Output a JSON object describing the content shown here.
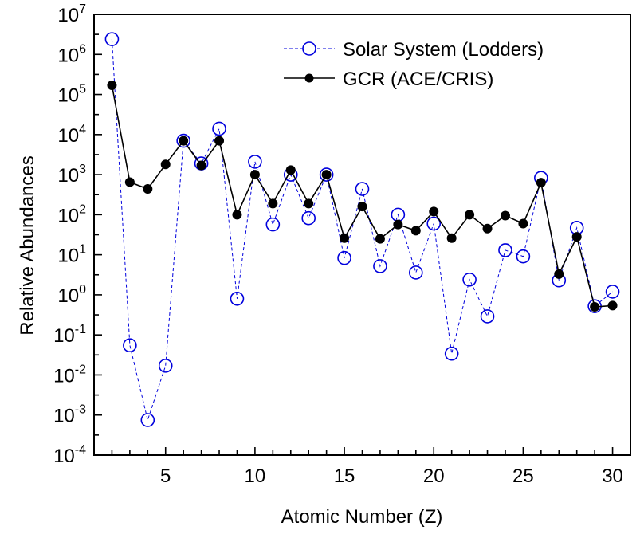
{
  "chart_data": {
    "type": "line",
    "title": "",
    "xlabel": "Atomic Number (Z)",
    "ylabel": "Relative Abundances",
    "xlim": [
      1,
      31
    ],
    "ylim": [
      0.0001,
      10000000
    ],
    "yscale": "log",
    "grid": false,
    "legend_position": "top-right",
    "xticks": [
      5,
      10,
      15,
      20,
      25,
      30
    ],
    "xtick_labels": [
      "5",
      "10",
      "15",
      "20",
      "25",
      "30"
    ],
    "ytick_exponents": [
      -4,
      -3,
      -2,
      -1,
      0,
      1,
      2,
      3,
      4,
      5,
      6,
      7
    ],
    "ytick_base": "10",
    "series": [
      {
        "name": "Solar System (Lodders)",
        "color": "#0000dd",
        "line_style": "dashed",
        "marker": "open-circle",
        "x": [
          2,
          3,
          4,
          5,
          6,
          7,
          8,
          9,
          10,
          11,
          12,
          13,
          14,
          15,
          16,
          17,
          18,
          19,
          20,
          21,
          22,
          23,
          24,
          25,
          26,
          27,
          28,
          29,
          30
        ],
        "y": [
          2400000,
          0.055,
          0.00075,
          0.017,
          7000,
          1900,
          14000,
          0.8,
          2100,
          57,
          1000,
          82,
          1000,
          8.3,
          440,
          5.2,
          100,
          3.6,
          60,
          0.034,
          2.4,
          0.29,
          13,
          9.1,
          830,
          2.3,
          47,
          0.52,
          1.2
        ]
      },
      {
        "name": "GCR (ACE/CRIS)",
        "color": "#000000",
        "line_style": "solid",
        "marker": "filled-circle",
        "x": [
          2,
          3,
          4,
          5,
          6,
          7,
          8,
          9,
          10,
          11,
          12,
          13,
          14,
          15,
          16,
          17,
          18,
          19,
          20,
          21,
          22,
          23,
          24,
          25,
          26,
          27,
          28,
          29,
          30
        ],
        "y": [
          170000,
          650,
          440,
          1800,
          7000,
          1700,
          7000,
          100,
          1000,
          190,
          1300,
          190,
          1000,
          26,
          160,
          25,
          57,
          40,
          120,
          26,
          100,
          45,
          95,
          60,
          630,
          3.3,
          28,
          0.5,
          0.54
        ]
      }
    ]
  }
}
